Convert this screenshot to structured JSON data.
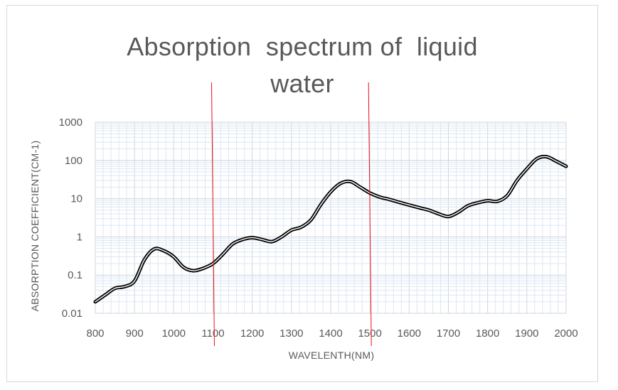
{
  "chart_data": {
    "type": "line",
    "title_lines": [
      "Absorption  spectrum of  liquid",
      "water"
    ],
    "xlabel": "WAVELENTH(NM)",
    "ylabel": "ABSORPTION COEFFICIENT(CM-1)",
    "x_scale": "linear",
    "y_scale": "log",
    "xlim": [
      800,
      2000
    ],
    "ylim": [
      0.01,
      1000
    ],
    "x_ticks": [
      800,
      900,
      1000,
      1100,
      1200,
      1300,
      1400,
      1500,
      1600,
      1700,
      1800,
      1900,
      2000
    ],
    "x_tick_labels": [
      "800",
      "900",
      "1000",
      "1100",
      "1200",
      "1300",
      "1400",
      "1500",
      "1600",
      "1700",
      "1800",
      "1900",
      "2000"
    ],
    "y_ticks": [
      0.01,
      0.1,
      1,
      10,
      100,
      1000
    ],
    "y_tick_labels": [
      "0.01",
      "0.1",
      "1",
      "10",
      "100",
      "1000"
    ],
    "grid": true,
    "series": [
      {
        "name": "Absorption coefficient",
        "color": "#000000",
        "x": [
          800,
          825,
          850,
          875,
          900,
          925,
          950,
          975,
          1000,
          1025,
          1050,
          1075,
          1100,
          1125,
          1150,
          1175,
          1200,
          1225,
          1250,
          1275,
          1300,
          1325,
          1350,
          1375,
          1400,
          1425,
          1450,
          1475,
          1500,
          1525,
          1550,
          1575,
          1600,
          1625,
          1650,
          1675,
          1700,
          1725,
          1750,
          1775,
          1800,
          1825,
          1850,
          1875,
          1900,
          1925,
          1950,
          1975,
          2000
        ],
        "y": [
          0.02,
          0.03,
          0.045,
          0.05,
          0.07,
          0.25,
          0.48,
          0.43,
          0.3,
          0.16,
          0.13,
          0.15,
          0.2,
          0.35,
          0.65,
          0.85,
          0.95,
          0.85,
          0.75,
          1.0,
          1.5,
          1.8,
          2.8,
          7.0,
          15,
          25,
          28,
          20,
          14,
          11,
          9.5,
          8.0,
          6.8,
          5.8,
          5.0,
          4.0,
          3.4,
          4.4,
          6.5,
          7.8,
          8.8,
          8.5,
          12,
          30,
          60,
          110,
          125,
          95,
          70
        ]
      }
    ],
    "annotations": [
      {
        "type": "vertical-line",
        "x": 1100,
        "color": "#e8101a"
      },
      {
        "type": "vertical-line",
        "x": 1500,
        "color": "#e8101a"
      }
    ]
  }
}
